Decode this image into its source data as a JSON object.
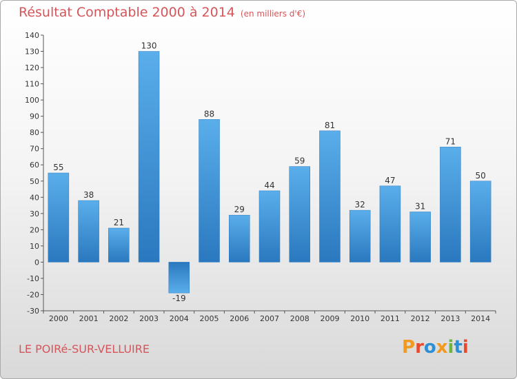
{
  "header": {
    "title": "Résultat Comptable 2000 à 2014",
    "unit": "(en milliers d'€)"
  },
  "footer": {
    "commune": "LE POIRé-SUR-VELLUIRE",
    "logo_text": "Proxiti"
  },
  "colors": {
    "title": "#d4555a",
    "bar_light": "#5aaeea",
    "bar_dark": "#2a78bf",
    "logo": [
      "#f29a20",
      "#e94a2c",
      "#2b8fd6",
      "#f29a20",
      "#6db33f",
      "#2b8fd6",
      "#e94a2c"
    ]
  },
  "chart_data": {
    "type": "bar",
    "categories": [
      "2000",
      "2001",
      "2002",
      "2003",
      "2004",
      "2005",
      "2006",
      "2007",
      "2008",
      "2009",
      "2010",
      "2011",
      "2012",
      "2013",
      "2014"
    ],
    "values": [
      55,
      38,
      21,
      130,
      -19,
      88,
      29,
      44,
      59,
      81,
      32,
      47,
      31,
      71,
      50
    ],
    "ylim": [
      -30,
      140
    ],
    "yticks": [
      -30,
      -20,
      -10,
      0,
      10,
      20,
      30,
      40,
      50,
      60,
      70,
      80,
      90,
      100,
      110,
      120,
      130,
      140
    ],
    "grid": false,
    "title": "Résultat Comptable 2000 à 2014",
    "ylabel": "",
    "xlabel": ""
  }
}
